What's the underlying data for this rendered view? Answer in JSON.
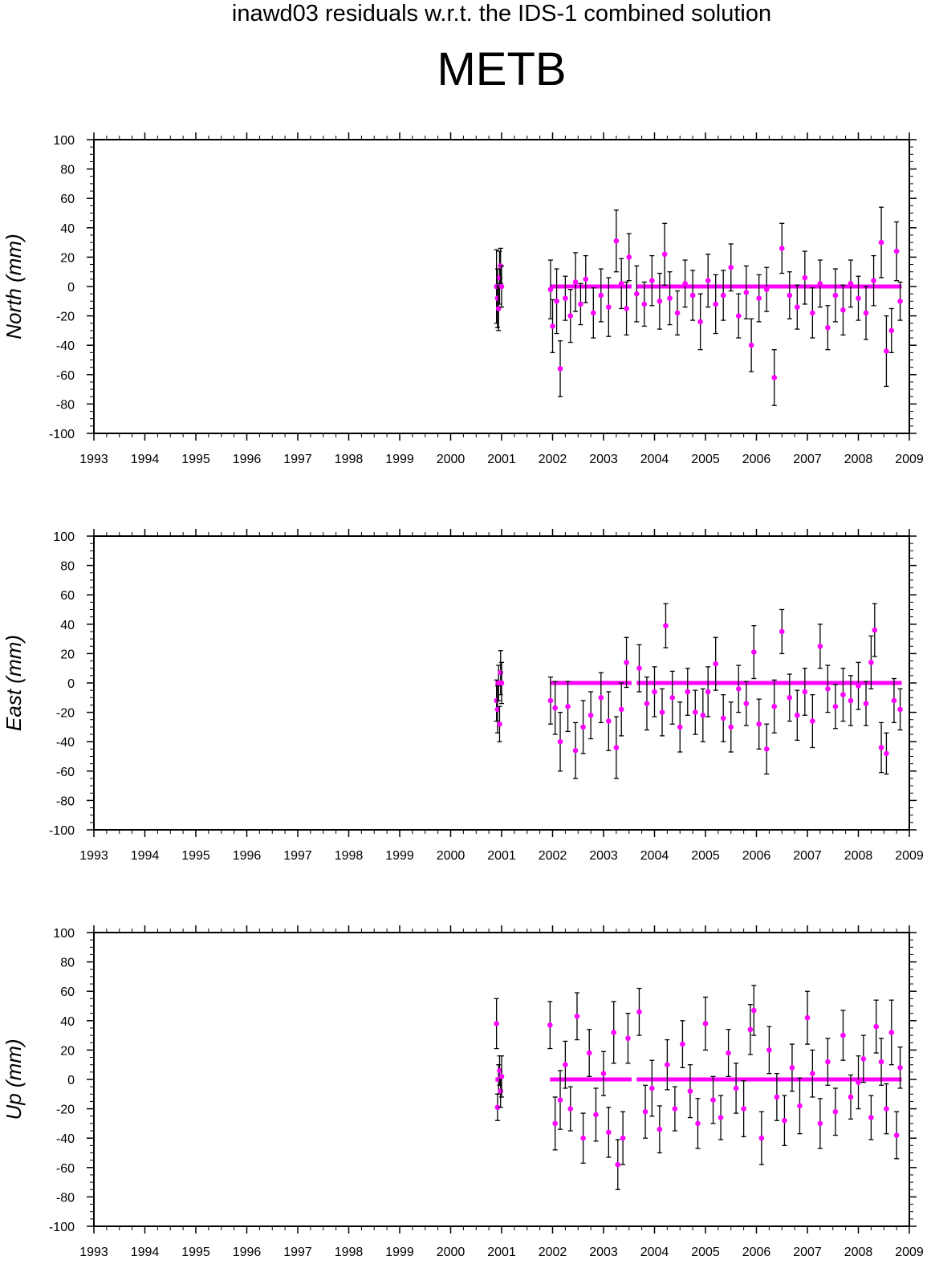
{
  "figure": {
    "title": "inawd03 residuals w.r.t. the IDS-1 combined solution",
    "station": "METB"
  },
  "colors": {
    "point": "#ff00ff",
    "errorbar": "#000000",
    "axis": "#000000"
  },
  "chart_data": [
    {
      "type": "scatter",
      "component": "north",
      "ylabel": "North (mm)",
      "xlim": [
        1993,
        2009
      ],
      "ylim": [
        -100,
        100
      ],
      "xticks": [
        "1993",
        "1994",
        "1995",
        "1996",
        "1997",
        "1998",
        "1999",
        "2000",
        "2001",
        "2002",
        "2003",
        "2004",
        "2005",
        "2006",
        "2007",
        "2008",
        "2009"
      ],
      "yticks": [
        "-100",
        "-80",
        "-60",
        "-40",
        "-20",
        "0",
        "20",
        "40",
        "60",
        "80",
        "100"
      ],
      "grid": false,
      "series": [
        {
          "x": [
            2000.9,
            2000.92,
            2000.94,
            2000.96,
            2000.98,
            2001.0,
            2001.96,
            2002.0,
            2002.08,
            2002.15,
            2002.25,
            2002.35,
            2002.45,
            2002.55,
            2002.65,
            2002.8,
            2002.95,
            2003.1,
            2003.25,
            2003.35,
            2003.45,
            2003.5,
            2003.65,
            2003.8,
            2003.95,
            2004.1,
            2004.2,
            2004.3,
            2004.45,
            2004.6,
            2004.75,
            2004.9,
            2005.05,
            2005.2,
            2005.35,
            2005.5,
            2005.65,
            2005.8,
            2005.9,
            2006.05,
            2006.2,
            2006.35,
            2006.5,
            2006.65,
            2006.8,
            2006.95,
            2007.1,
            2007.25,
            2007.4,
            2007.55,
            2007.7,
            2007.85,
            2008.0,
            2008.15,
            2008.3,
            2008.45,
            2008.55,
            2008.65,
            2008.75,
            2008.82
          ],
          "y": [
            0,
            -8,
            -15,
            6,
            14,
            0,
            -2,
            -27,
            -10,
            -56,
            -8,
            -20,
            3,
            -12,
            5,
            -18,
            -6,
            -14,
            31,
            2,
            -15,
            20,
            -5,
            -12,
            4,
            -10,
            22,
            -8,
            -18,
            2,
            -6,
            -24,
            4,
            -12,
            -6,
            13,
            -20,
            -4,
            -40,
            -8,
            -2,
            -62,
            26,
            -6,
            -14,
            6,
            -18,
            2,
            -28,
            -6,
            -16,
            2,
            -8,
            -18,
            4,
            30,
            -44,
            -30,
            24,
            -10
          ],
          "err": [
            25,
            20,
            15,
            18,
            12,
            14,
            20,
            18,
            22,
            19,
            15,
            18,
            20,
            14,
            16,
            17,
            18,
            20,
            21,
            17,
            18,
            16,
            19,
            15,
            17,
            19,
            21,
            18,
            15,
            16,
            17,
            19,
            18,
            20,
            17,
            16,
            15,
            18,
            18,
            16,
            15,
            19,
            17,
            16,
            15,
            18,
            17,
            16,
            15,
            18,
            17,
            16,
            15,
            18,
            17,
            24,
            24,
            15,
            20,
            13
          ]
        }
      ],
      "baseline": {
        "y": 0,
        "x_ranges": [
          [
            2000.88,
            2000.99
          ],
          [
            2001.95,
            2003.55
          ],
          [
            2003.65,
            2008.85
          ]
        ]
      }
    },
    {
      "type": "scatter",
      "component": "east",
      "ylabel": "East (mm)",
      "xlim": [
        1993,
        2009
      ],
      "ylim": [
        -100,
        100
      ],
      "xticks": [
        "1993",
        "1994",
        "1995",
        "1996",
        "1997",
        "1998",
        "1999",
        "2000",
        "2001",
        "2002",
        "2003",
        "2004",
        "2005",
        "2006",
        "2007",
        "2008",
        "2009"
      ],
      "yticks": [
        "-100",
        "-80",
        "-60",
        "-40",
        "-20",
        "0",
        "20",
        "40",
        "60",
        "80",
        "100"
      ],
      "grid": false,
      "series": [
        {
          "x": [
            2000.9,
            2000.92,
            2000.94,
            2000.96,
            2000.98,
            2001.0,
            2001.96,
            2002.05,
            2002.15,
            2002.3,
            2002.45,
            2002.6,
            2002.75,
            2002.95,
            2003.1,
            2003.25,
            2003.35,
            2003.45,
            2003.7,
            2003.85,
            2004.0,
            2004.15,
            2004.22,
            2004.35,
            2004.5,
            2004.65,
            2004.8,
            2004.95,
            2005.05,
            2005.2,
            2005.35,
            2005.5,
            2005.65,
            2005.8,
            2005.95,
            2006.05,
            2006.2,
            2006.35,
            2006.5,
            2006.65,
            2006.8,
            2006.95,
            2007.1,
            2007.25,
            2007.4,
            2007.55,
            2007.7,
            2007.85,
            2008.0,
            2008.15,
            2008.25,
            2008.32,
            2008.45,
            2008.55,
            2008.7,
            2008.82
          ],
          "y": [
            -12,
            -18,
            0,
            -28,
            7,
            0,
            -12,
            -17,
            -40,
            -16,
            -46,
            -30,
            -22,
            -10,
            -26,
            -44,
            -18,
            14,
            10,
            -14,
            -6,
            -20,
            39,
            -10,
            -30,
            -6,
            -20,
            -22,
            -6,
            13,
            -24,
            -30,
            -4,
            -14,
            21,
            -28,
            -45,
            -16,
            35,
            -10,
            -22,
            -6,
            -26,
            25,
            -4,
            -16,
            -8,
            -12,
            -2,
            -14,
            14,
            36,
            -44,
            -48,
            -12,
            -18
          ],
          "err": [
            14,
            16,
            12,
            12,
            15,
            14,
            16,
            18,
            20,
            17,
            19,
            18,
            16,
            17,
            20,
            21,
            18,
            17,
            16,
            18,
            17,
            16,
            15,
            18,
            17,
            16,
            15,
            18,
            17,
            18,
            16,
            17,
            16,
            15,
            18,
            17,
            17,
            18,
            15,
            16,
            17,
            16,
            18,
            15,
            16,
            15,
            18,
            17,
            16,
            15,
            18,
            18,
            17,
            14,
            15,
            14
          ]
        }
      ],
      "baseline": {
        "y": 0,
        "x_ranges": [
          [
            2000.88,
            2000.99
          ],
          [
            2001.95,
            2003.55
          ],
          [
            2003.65,
            2008.85
          ]
        ]
      }
    },
    {
      "type": "scatter",
      "component": "up",
      "ylabel": "Up (mm)",
      "xlim": [
        1993,
        2009
      ],
      "ylim": [
        -100,
        100
      ],
      "xticks": [
        "1993",
        "1994",
        "1995",
        "1996",
        "1997",
        "1998",
        "1999",
        "2000",
        "2001",
        "2002",
        "2003",
        "2004",
        "2005",
        "2006",
        "2007",
        "2008",
        "2009"
      ],
      "yticks": [
        "-100",
        "-80",
        "-60",
        "-40",
        "-20",
        "0",
        "20",
        "40",
        "60",
        "80",
        "100"
      ],
      "grid": false,
      "series": [
        {
          "x": [
            2000.9,
            2000.92,
            2000.94,
            2000.96,
            2000.98,
            2001.0,
            2001.95,
            2002.05,
            2002.15,
            2002.25,
            2002.35,
            2002.48,
            2002.6,
            2002.72,
            2002.85,
            2003.0,
            2003.1,
            2003.2,
            2003.28,
            2003.38,
            2003.48,
            2003.7,
            2003.82,
            2003.95,
            2004.1,
            2004.25,
            2004.4,
            2004.55,
            2004.7,
            2004.85,
            2005.0,
            2005.15,
            2005.3,
            2005.45,
            2005.6,
            2005.75,
            2005.88,
            2005.95,
            2006.1,
            2006.25,
            2006.4,
            2006.55,
            2006.7,
            2006.85,
            2007.0,
            2007.1,
            2007.25,
            2007.4,
            2007.55,
            2007.7,
            2007.85,
            2008.0,
            2008.1,
            2008.25,
            2008.35,
            2008.45,
            2008.55,
            2008.65,
            2008.75,
            2008.82
          ],
          "y": [
            38,
            -19,
            0,
            6,
            -8,
            2,
            37,
            -30,
            -14,
            10,
            -20,
            43,
            -40,
            18,
            -24,
            4,
            -36,
            32,
            -58,
            -40,
            28,
            46,
            -22,
            -6,
            -34,
            10,
            -20,
            24,
            -8,
            -30,
            38,
            -14,
            -26,
            18,
            -6,
            -20,
            34,
            47,
            -40,
            20,
            -12,
            -28,
            8,
            -18,
            42,
            4,
            -30,
            12,
            -22,
            30,
            -12,
            -2,
            14,
            -26,
            36,
            12,
            -20,
            32,
            -38,
            8
          ],
          "err": [
            17,
            9,
            10,
            10,
            11,
            14,
            16,
            18,
            20,
            16,
            15,
            16,
            17,
            16,
            18,
            15,
            17,
            21,
            17,
            18,
            17,
            16,
            18,
            19,
            16,
            17,
            15,
            16,
            18,
            17,
            18,
            16,
            15,
            16,
            17,
            19,
            17,
            17,
            18,
            16,
            16,
            17,
            16,
            19,
            18,
            16,
            17,
            16,
            16,
            17,
            15,
            18,
            16,
            15,
            18,
            16,
            17,
            22,
            16,
            14
          ]
        }
      ],
      "baseline": {
        "y": 0,
        "x_ranges": [
          [
            2000.88,
            2000.99
          ],
          [
            2001.95,
            2003.55
          ],
          [
            2003.65,
            2008.85
          ]
        ]
      }
    }
  ]
}
